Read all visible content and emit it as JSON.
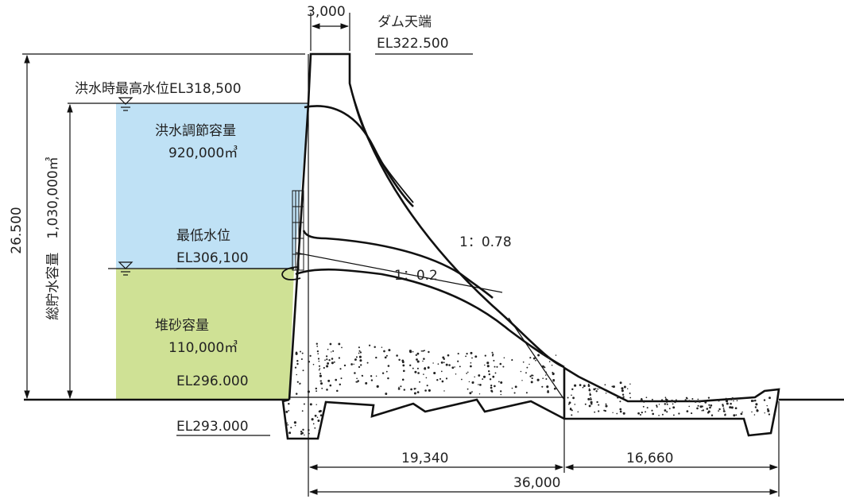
{
  "crest": {
    "width": "3,000",
    "name": "ダム天端",
    "elevation": "EL322.500"
  },
  "levels": {
    "flood_high_water": "洪水時最高水位EL318,500",
    "min_water_title": "最低水位",
    "min_water_el": "EL306,100",
    "sediment_top_el": "EL296.000",
    "foundation_el": "EL293.000"
  },
  "reservoir": {
    "flood_capacity_title": "洪水調節容量",
    "flood_capacity_value": "920,000㎥",
    "sediment_title": "堆砂容量",
    "sediment_value": "110,000㎥",
    "total_capacity": "総貯水容量　1,030,000㎥"
  },
  "slopes": {
    "downstream": "1：0.78",
    "upstream": "1：0.2"
  },
  "dimensions": {
    "dam_height": "26.500",
    "base_upstream": "19,340",
    "apron": "16,660",
    "total_length": "36,000"
  },
  "colors": {
    "flood_zone": "#bfe1f5",
    "sediment_zone": "#cfe195",
    "line": "#111111"
  }
}
